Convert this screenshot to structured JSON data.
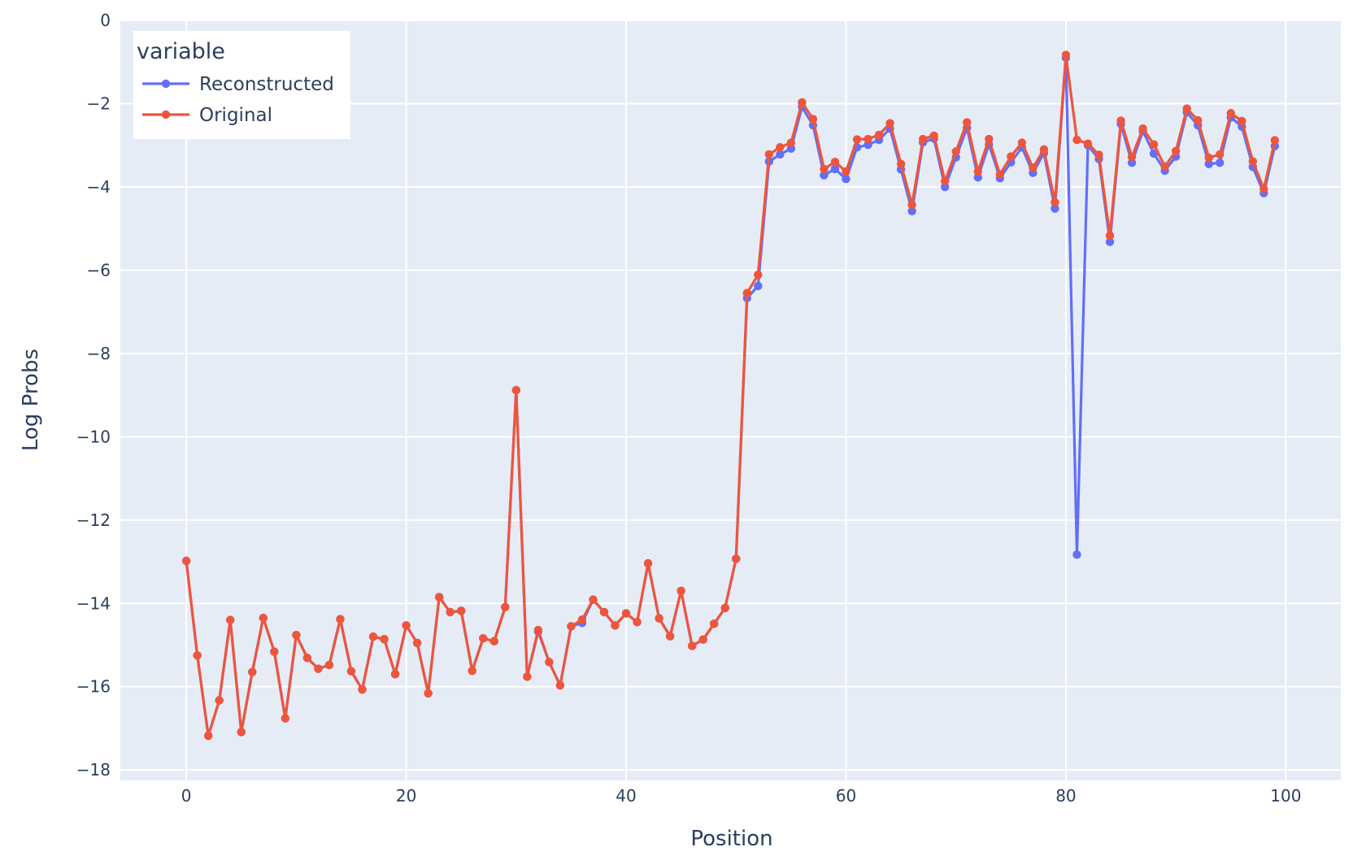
{
  "chart_data": {
    "type": "line",
    "xlabel": "Position",
    "ylabel": "Log Probs",
    "xlim": [
      -6,
      105
    ],
    "ylim": [
      -18.25,
      0
    ],
    "x_ticks": [
      0,
      20,
      40,
      60,
      80,
      100
    ],
    "y_ticks": [
      0,
      -2,
      -4,
      -6,
      -8,
      -10,
      -12,
      -14,
      -16,
      -18
    ],
    "x_tick_labels": [
      "0",
      "20",
      "40",
      "60",
      "80",
      "100"
    ],
    "y_tick_labels": [
      "0",
      "−2",
      "−4",
      "−6",
      "−8",
      "−10",
      "−12",
      "−14",
      "−16",
      "−18"
    ],
    "grid": true,
    "legend": {
      "title": "variable",
      "position": "top-left"
    },
    "series": [
      {
        "name": "Reconstructed",
        "color": "#636efa",
        "values": [
          -12.98,
          -15.25,
          -17.18,
          -16.33,
          -14.4,
          -17.09,
          -15.65,
          -14.35,
          -15.16,
          -16.76,
          -14.76,
          -15.31,
          -15.57,
          -15.48,
          -14.38,
          -15.63,
          -16.07,
          -14.8,
          -14.86,
          -15.7,
          -14.53,
          -14.95,
          -16.16,
          -13.85,
          -14.21,
          -14.18,
          -15.62,
          -14.84,
          -14.91,
          -14.09,
          -8.88,
          -15.76,
          -14.68,
          -15.41,
          -15.97,
          -14.55,
          -14.47,
          -13.91,
          -14.21,
          -14.53,
          -14.24,
          -14.45,
          -13.04,
          -14.36,
          -14.79,
          -13.7,
          -15.02,
          -14.87,
          -14.49,
          -14.11,
          -12.93,
          -6.67,
          -6.38,
          -3.39,
          -3.22,
          -3.08,
          -2.08,
          -2.52,
          -3.72,
          -3.57,
          -3.81,
          -3.05,
          -2.99,
          -2.87,
          -2.6,
          -3.58,
          -4.58,
          -2.93,
          -2.84,
          -4.0,
          -3.29,
          -2.58,
          -3.77,
          -2.98,
          -3.79,
          -3.41,
          -3.05,
          -3.66,
          -3.19,
          -4.52,
          -0.9,
          -12.83,
          -3.0,
          -3.33,
          -5.32,
          -2.49,
          -3.42,
          -2.66,
          -3.2,
          -3.61,
          -3.27,
          -2.21,
          -2.52,
          -3.45,
          -3.42,
          -2.33,
          -2.55,
          -3.52,
          -4.15,
          -3.02
        ]
      },
      {
        "name": "Original",
        "color": "#ef553b",
        "values": [
          -12.98,
          -15.25,
          -17.18,
          -16.33,
          -14.4,
          -17.09,
          -15.65,
          -14.35,
          -15.16,
          -16.76,
          -14.76,
          -15.31,
          -15.57,
          -15.48,
          -14.38,
          -15.63,
          -16.07,
          -14.8,
          -14.86,
          -15.7,
          -14.53,
          -14.95,
          -16.16,
          -13.85,
          -14.21,
          -14.18,
          -15.62,
          -14.84,
          -14.91,
          -14.09,
          -8.88,
          -15.76,
          -14.64,
          -15.41,
          -15.97,
          -14.55,
          -14.39,
          -13.91,
          -14.21,
          -14.53,
          -14.24,
          -14.45,
          -13.04,
          -14.36,
          -14.79,
          -13.7,
          -15.02,
          -14.87,
          -14.49,
          -14.11,
          -12.93,
          -6.55,
          -6.11,
          -3.22,
          -3.05,
          -2.94,
          -1.97,
          -2.37,
          -3.57,
          -3.4,
          -3.63,
          -2.86,
          -2.85,
          -2.75,
          -2.47,
          -3.45,
          -4.43,
          -2.85,
          -2.77,
          -3.86,
          -3.15,
          -2.45,
          -3.63,
          -2.85,
          -3.7,
          -3.27,
          -2.94,
          -3.54,
          -3.1,
          -4.37,
          -0.83,
          -2.87,
          -2.96,
          -3.23,
          -5.17,
          -2.41,
          -3.28,
          -2.6,
          -2.98,
          -3.51,
          -3.14,
          -2.12,
          -2.4,
          -3.3,
          -3.22,
          -2.23,
          -2.42,
          -3.39,
          -4.05,
          -2.88
        ]
      }
    ]
  }
}
